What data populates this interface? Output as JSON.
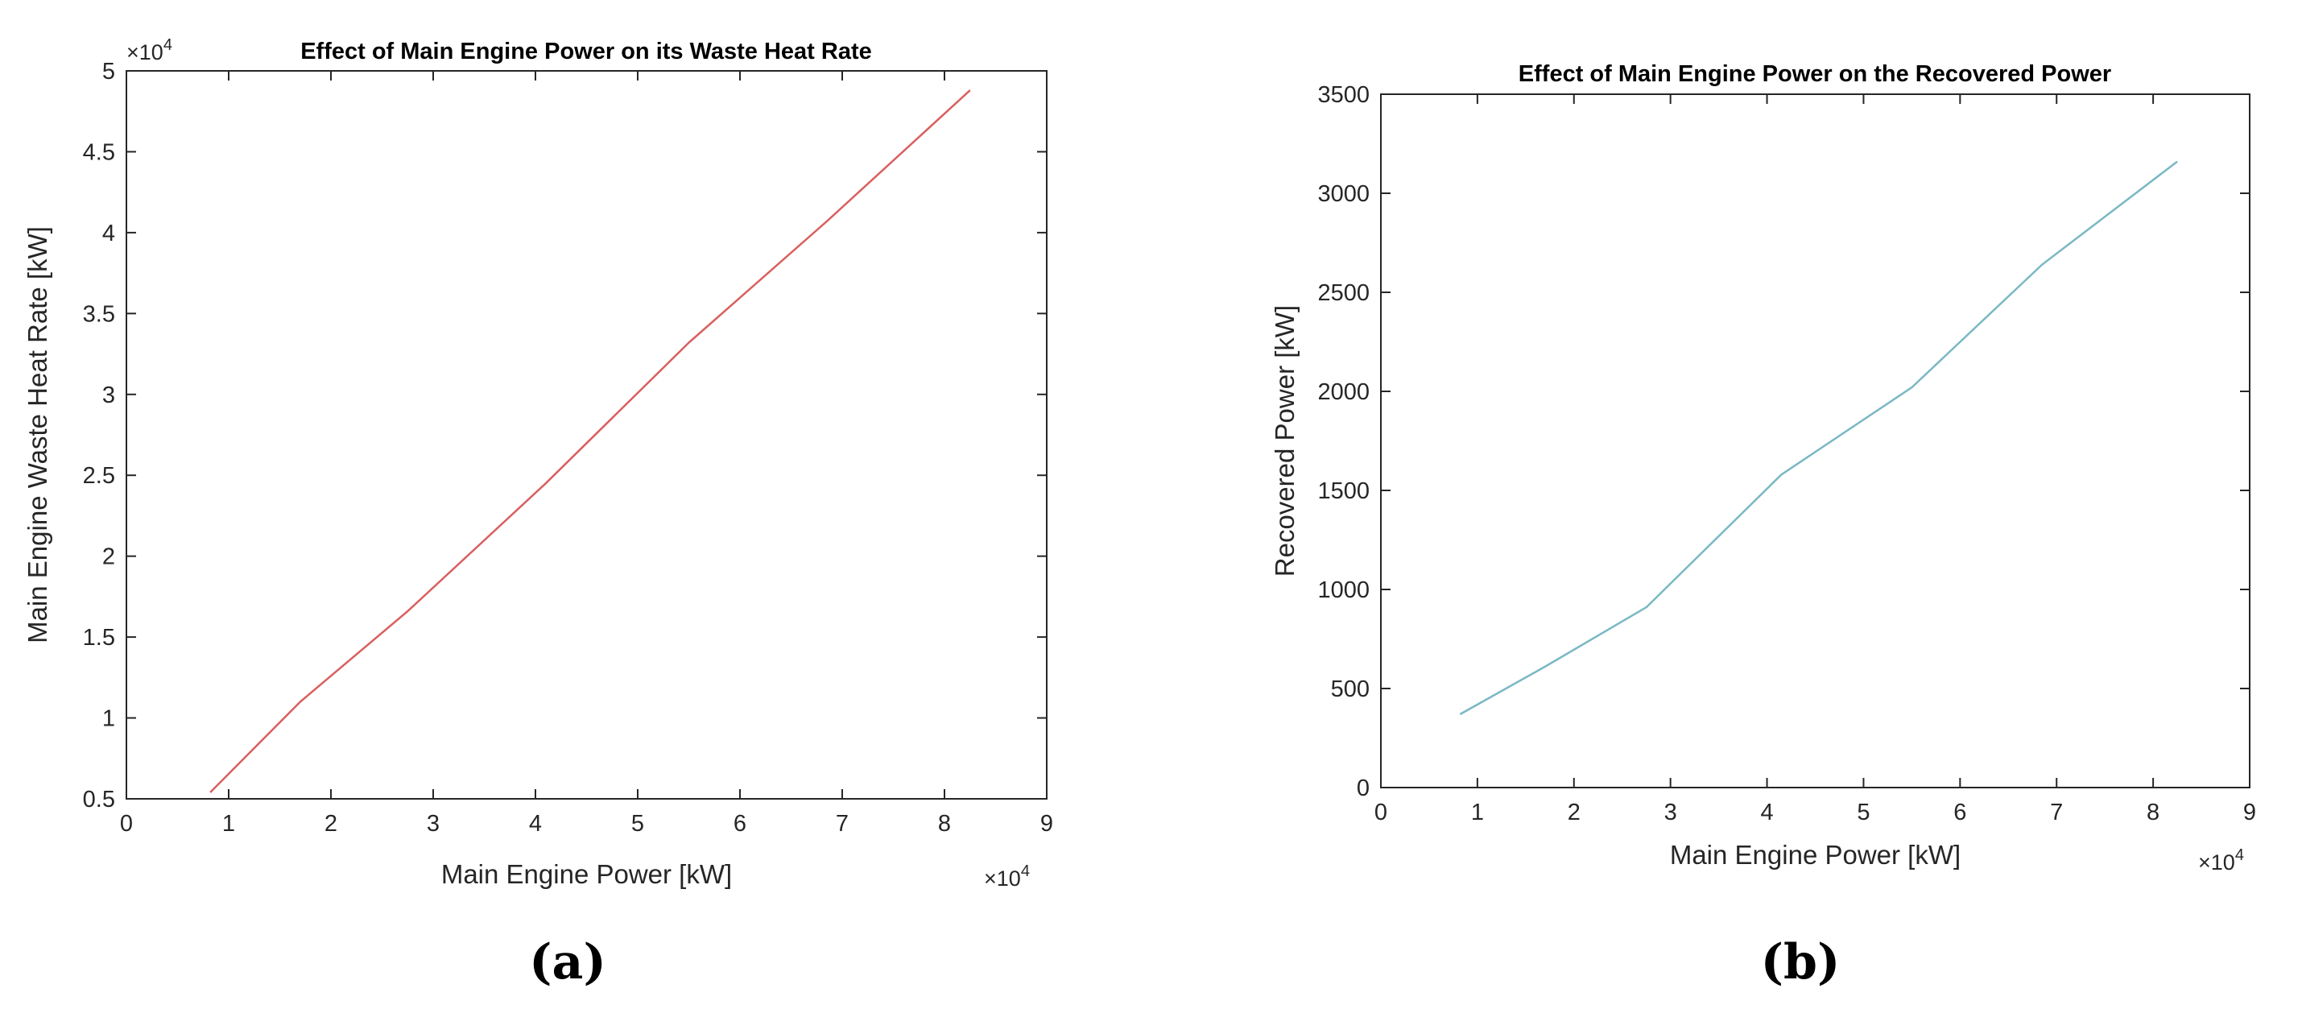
{
  "chart_data": [
    {
      "type": "line",
      "panel_label": "(a)",
      "title": "Effect of Main Engine Power on its Waste Heat Rate",
      "xlabel": "Main Engine Power [kW]",
      "ylabel": "Main Engine Waste Heat Rate [kW]",
      "x_multiplier": "×10",
      "x_multiplier_exp": "4",
      "y_multiplier": "×10",
      "y_multiplier_exp": "4",
      "xlim": [
        0,
        9
      ],
      "ylim": [
        0.5,
        5
      ],
      "xticks": [
        "0",
        "1",
        "2",
        "3",
        "4",
        "5",
        "6",
        "7",
        "8",
        "9"
      ],
      "yticks": [
        "0.5",
        "1",
        "1.5",
        "2",
        "2.5",
        "3",
        "3.5",
        "4",
        "4.5",
        "5"
      ],
      "grid": false,
      "series": [
        {
          "name": "Main Engine Waste Heat Rate",
          "color": "#d95f5f",
          "x": [
            0.82,
            1.7,
            2.75,
            4.1,
            5.5,
            6.85,
            8.25
          ],
          "y": [
            0.54,
            1.1,
            1.66,
            2.45,
            3.32,
            4.07,
            4.88
          ]
        }
      ]
    },
    {
      "type": "line",
      "panel_label": "(b)",
      "title": "Effect of Main Engine Power on the Recovered Power",
      "xlabel": "Main Engine Power [kW]",
      "ylabel": "Recovered Power [kW]",
      "x_multiplier": "×10",
      "x_multiplier_exp": "4",
      "xlim": [
        0,
        9
      ],
      "ylim": [
        0,
        3500
      ],
      "xticks": [
        "0",
        "1",
        "2",
        "3",
        "4",
        "5",
        "6",
        "7",
        "8",
        "9"
      ],
      "yticks": [
        "0",
        "500",
        "1000",
        "1500",
        "2000",
        "2500",
        "3000",
        "3500"
      ],
      "grid": false,
      "series": [
        {
          "name": "Recovered Power",
          "color": "#7ab8c4",
          "x": [
            0.82,
            1.7,
            2.75,
            4.15,
            5.5,
            6.85,
            8.25
          ],
          "y": [
            370,
            610,
            910,
            1580,
            2020,
            2640,
            3160
          ]
        }
      ]
    }
  ]
}
